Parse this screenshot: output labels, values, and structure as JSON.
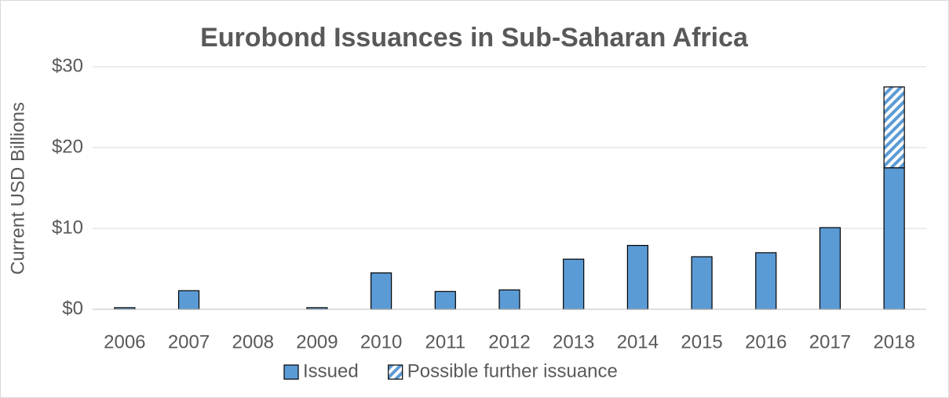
{
  "chart_data": {
    "type": "bar",
    "stacked": true,
    "title": "Eurobond Issuances in Sub-Saharan Africa",
    "y_label": "Current USD Billions",
    "categories": [
      "2006",
      "2007",
      "2008",
      "2009",
      "2010",
      "2011",
      "2012",
      "2013",
      "2014",
      "2015",
      "2016",
      "2017",
      "2018"
    ],
    "series": [
      {
        "name": "Issued",
        "color": "#5b9bd5",
        "values": [
          0.2,
          2.3,
          0,
          0.2,
          4.5,
          2.2,
          2.4,
          6.2,
          7.9,
          6.5,
          7.0,
          10.1,
          17.5
        ]
      },
      {
        "name": "Possible further issuance",
        "color": "#5b9bd5",
        "pattern": "hatch",
        "values": [
          null,
          null,
          null,
          null,
          null,
          null,
          null,
          null,
          null,
          null,
          null,
          null,
          10.0
        ]
      }
    ],
    "ylim": [
      0,
      30
    ],
    "yticks": [
      {
        "value": 0,
        "label": "$0"
      },
      {
        "value": 10,
        "label": "$10"
      },
      {
        "value": 20,
        "label": "$20"
      },
      {
        "value": 30,
        "label": "$30"
      }
    ],
    "grid": true,
    "legend": "bottom"
  }
}
